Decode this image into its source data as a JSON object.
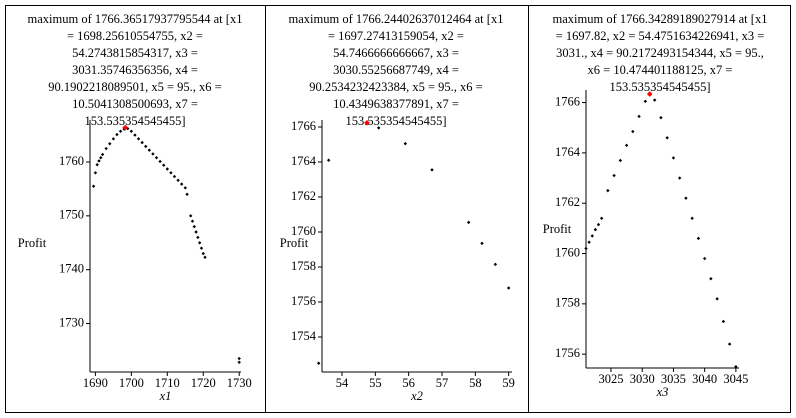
{
  "chart_data": [
    {
      "type": "scatter",
      "title_lines": [
        "maximum of 1766.36517937795544 at [x1",
        "= 1698.25610554755, x2 =",
        "54.2743815854317, x3 =",
        "3031.35746356356, x4 =",
        "90.1902218089501, x5 = 95., x6 =",
        "10.5041308500693, x7 =",
        "153.535354545455]"
      ],
      "xlabel": "x1",
      "ylabel": "Profit",
      "color": "#000000",
      "x": [
        1689.5,
        1690,
        1690.5,
        1691,
        1691.5,
        1692,
        1693,
        1694,
        1695,
        1696,
        1697,
        1698,
        1699,
        1700,
        1701,
        1702,
        1703,
        1704,
        1705,
        1706,
        1707,
        1708,
        1709,
        1710,
        1711,
        1712,
        1713,
        1714,
        1715,
        1715.5,
        1716.5,
        1717,
        1717.5,
        1718,
        1718.5,
        1719,
        1719.5,
        1720,
        1720.5,
        1730,
        1730
      ],
      "y": [
        1755.5,
        1758,
        1759.5,
        1760.2,
        1760.8,
        1761.4,
        1762.5,
        1763.4,
        1764.3,
        1765.1,
        1765.7,
        1766.1,
        1766.2,
        1765.7,
        1765,
        1764.3,
        1763.6,
        1762.9,
        1762.2,
        1761.5,
        1760.8,
        1760.1,
        1759.4,
        1758.7,
        1758,
        1757.3,
        1756.6,
        1755.9,
        1755.2,
        1754,
        1750,
        1749,
        1748,
        1747,
        1746,
        1745,
        1744,
        1743,
        1742.3,
        1723.5,
        1722.8
      ],
      "max_point": {
        "x": 1698.3,
        "y": 1766.4,
        "color": "#ff0000"
      },
      "xlim": [
        1688.5,
        1730.5
      ],
      "ylim": [
        1721,
        1767.8
      ],
      "xticks": [
        1690,
        1700,
        1710,
        1720,
        1730
      ],
      "yticks": [
        1730,
        1740,
        1750,
        1760
      ]
    },
    {
      "type": "scatter",
      "title_lines": [
        "maximum of 1766.24402637012464 at [x1",
        "= 1697.27413159054, x2 =",
        "54.7466666666667, x3 =",
        "3030.55256687749, x4 =",
        "90.2534232423384, x5 = 95., x6 =",
        "10.4349638377891, x7 =",
        "153.535354545455]"
      ],
      "xlabel": "x2",
      "ylabel": "Profit",
      "color": "#000000",
      "x": [
        53.3,
        53.6,
        55.1,
        55.9,
        56.7,
        57.8,
        58.2,
        58.6,
        59
      ],
      "y": [
        1752.5,
        1764.1,
        1765.95,
        1765.05,
        1763.55,
        1760.55,
        1759.35,
        1758.15,
        1756.8
      ],
      "max_point": {
        "x": 54.75,
        "y": 1766.24,
        "color": "#ff0000"
      },
      "xlim": [
        53.4,
        59.1
      ],
      "ylim": [
        1752,
        1766.4
      ],
      "xticks": [
        54,
        55,
        56,
        57,
        58,
        59
      ],
      "yticks": [
        1754,
        1756,
        1758,
        1760,
        1762,
        1764,
        1766
      ]
    },
    {
      "type": "scatter",
      "title_lines": [
        "maximum of 1766.34289189027914 at [x1",
        "= 1697.82, x2 = 54.4751634226941, x3 =",
        "3031., x4 = 90.2172493154344, x5 = 95.,",
        "x6 = 10.474401188125, x7 =",
        "153.535354545455]"
      ],
      "xlabel": "x3",
      "ylabel": "Profit",
      "color": "#000000",
      "x": [
        3021,
        3021.5,
        3022,
        3022.5,
        3023,
        3023.5,
        3024.5,
        3025.5,
        3026.5,
        3027.5,
        3028.5,
        3029.5,
        3030.5,
        3032,
        3033,
        3034,
        3035,
        3036,
        3037,
        3038,
        3039,
        3040,
        3041,
        3042,
        3043,
        3044,
        3045
      ],
      "y": [
        1760.2,
        1760.45,
        1760.7,
        1760.95,
        1761.15,
        1761.4,
        1762.5,
        1763.1,
        1763.7,
        1764.3,
        1764.85,
        1765.45,
        1766.05,
        1766.1,
        1765.4,
        1764.6,
        1763.8,
        1763,
        1762.2,
        1761.4,
        1760.6,
        1759.8,
        1759,
        1758.2,
        1757.3,
        1756.4,
        1755.5
      ],
      "max_point": {
        "x": 3031.2,
        "y": 1766.34,
        "color": "#ff0000"
      },
      "xlim": [
        3021,
        3045.5
      ],
      "ylim": [
        1755.45,
        1766.5
      ],
      "xticks": [
        3025,
        3030,
        3035,
        3040,
        3045
      ],
      "yticks": [
        1756,
        1758,
        1760,
        1762,
        1764,
        1766
      ]
    }
  ]
}
